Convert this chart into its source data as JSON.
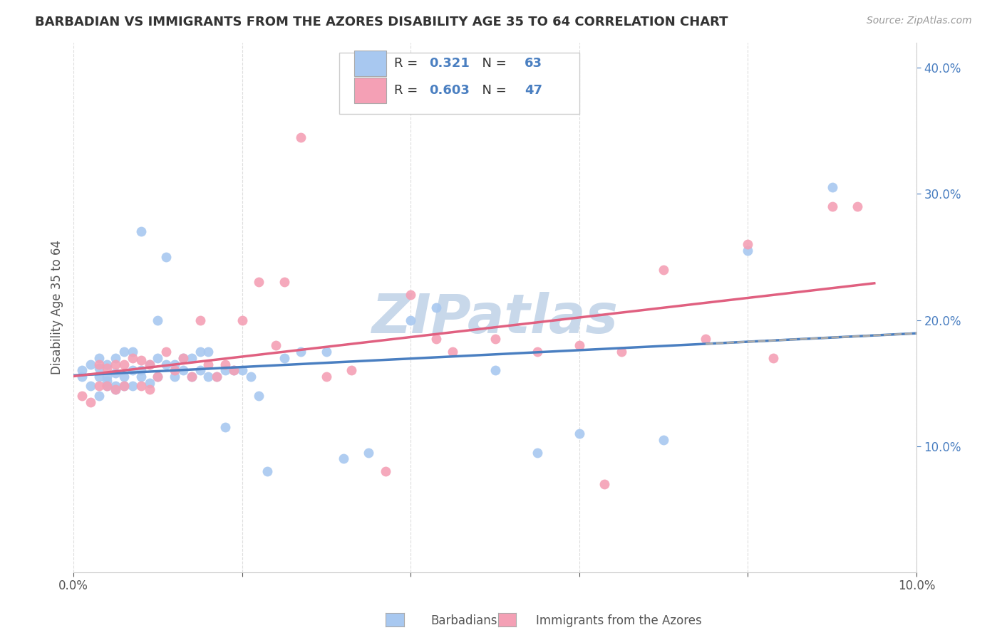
{
  "title": "BARBADIAN VS IMMIGRANTS FROM THE AZORES DISABILITY AGE 35 TO 64 CORRELATION CHART",
  "source": "Source: ZipAtlas.com",
  "ylabel": "Disability Age 35 to 64",
  "x_min": 0.0,
  "x_max": 0.1,
  "y_min": 0.0,
  "y_max": 0.42,
  "barbadian_color": "#a8c8f0",
  "azores_color": "#f4a0b5",
  "barbadian_line_color": "#4a7fc1",
  "azores_line_color": "#e06080",
  "dashed_line_color": "#aaaaaa",
  "barbadian_R": 0.321,
  "barbadian_N": 63,
  "azores_R": 0.603,
  "azores_N": 47,
  "barbadian_scatter_x": [
    0.001,
    0.001,
    0.002,
    0.002,
    0.003,
    0.003,
    0.003,
    0.003,
    0.004,
    0.004,
    0.004,
    0.004,
    0.005,
    0.005,
    0.005,
    0.005,
    0.006,
    0.006,
    0.006,
    0.007,
    0.007,
    0.007,
    0.008,
    0.008,
    0.008,
    0.009,
    0.009,
    0.01,
    0.01,
    0.01,
    0.011,
    0.011,
    0.012,
    0.012,
    0.013,
    0.013,
    0.014,
    0.014,
    0.015,
    0.015,
    0.016,
    0.016,
    0.017,
    0.018,
    0.018,
    0.019,
    0.02,
    0.021,
    0.022,
    0.023,
    0.025,
    0.027,
    0.03,
    0.032,
    0.035,
    0.04,
    0.043,
    0.05,
    0.055,
    0.06,
    0.07,
    0.08,
    0.09
  ],
  "barbadian_scatter_y": [
    0.155,
    0.16,
    0.148,
    0.165,
    0.14,
    0.155,
    0.162,
    0.17,
    0.148,
    0.155,
    0.152,
    0.165,
    0.145,
    0.148,
    0.158,
    0.17,
    0.148,
    0.155,
    0.175,
    0.148,
    0.16,
    0.175,
    0.155,
    0.16,
    0.27,
    0.15,
    0.165,
    0.155,
    0.17,
    0.2,
    0.165,
    0.25,
    0.155,
    0.165,
    0.16,
    0.17,
    0.155,
    0.17,
    0.16,
    0.175,
    0.155,
    0.175,
    0.155,
    0.16,
    0.115,
    0.16,
    0.16,
    0.155,
    0.14,
    0.08,
    0.17,
    0.175,
    0.175,
    0.09,
    0.095,
    0.2,
    0.21,
    0.16,
    0.095,
    0.11,
    0.105,
    0.255,
    0.305
  ],
  "azores_scatter_x": [
    0.001,
    0.002,
    0.003,
    0.003,
    0.004,
    0.004,
    0.005,
    0.005,
    0.006,
    0.006,
    0.007,
    0.008,
    0.008,
    0.009,
    0.009,
    0.01,
    0.011,
    0.012,
    0.013,
    0.014,
    0.015,
    0.016,
    0.017,
    0.018,
    0.019,
    0.02,
    0.022,
    0.024,
    0.025,
    0.027,
    0.03,
    0.033,
    0.037,
    0.04,
    0.043,
    0.045,
    0.05,
    0.055,
    0.06,
    0.063,
    0.065,
    0.07,
    0.075,
    0.08,
    0.083,
    0.09,
    0.093
  ],
  "azores_scatter_y": [
    0.14,
    0.135,
    0.148,
    0.165,
    0.148,
    0.162,
    0.145,
    0.165,
    0.148,
    0.165,
    0.17,
    0.148,
    0.168,
    0.145,
    0.165,
    0.155,
    0.175,
    0.16,
    0.17,
    0.155,
    0.2,
    0.165,
    0.155,
    0.165,
    0.16,
    0.2,
    0.23,
    0.18,
    0.23,
    0.345,
    0.155,
    0.16,
    0.08,
    0.22,
    0.185,
    0.175,
    0.185,
    0.175,
    0.18,
    0.07,
    0.175,
    0.24,
    0.185,
    0.26,
    0.17,
    0.29,
    0.29
  ],
  "background_color": "#ffffff",
  "grid_color": "#dddddd",
  "watermark_text": "ZIPatlas",
  "watermark_color": "#c8d8ea"
}
